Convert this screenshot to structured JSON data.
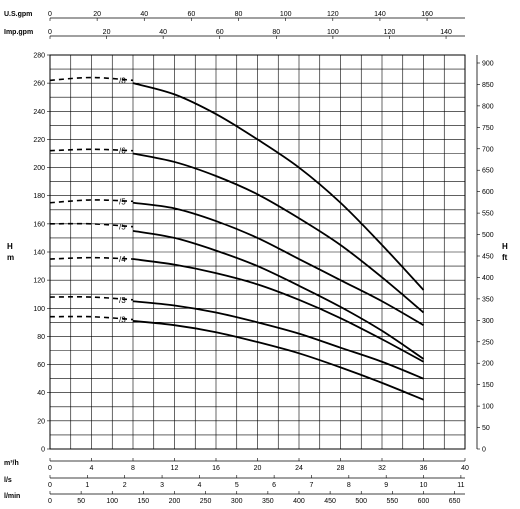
{
  "chart_data": {
    "type": "line",
    "left_axis": {
      "label_line1": "H",
      "label_line2": "m",
      "ylim": [
        0,
        280
      ],
      "ticks": [
        0,
        20,
        40,
        60,
        80,
        100,
        120,
        140,
        160,
        180,
        200,
        220,
        240,
        260,
        280
      ]
    },
    "right_axis": {
      "label_line1": "H",
      "label_line2": "ft",
      "ticks": [
        0,
        50,
        100,
        150,
        200,
        250,
        300,
        350,
        400,
        450,
        500,
        550,
        600,
        650,
        700,
        750,
        800,
        850,
        900
      ]
    },
    "top_axes": [
      {
        "label": "U.S.gpm",
        "ticks": [
          0,
          20,
          40,
          60,
          80,
          100,
          120,
          140,
          160
        ],
        "max": 176.1
      },
      {
        "label": "Imp.gpm",
        "ticks": [
          0,
          20,
          40,
          60,
          80,
          100,
          120,
          140
        ],
        "max": 146.7
      }
    ],
    "bottom_axes": [
      {
        "label": "m³/h",
        "ticks": [
          0,
          4,
          8,
          12,
          16,
          20,
          24,
          28,
          32,
          36,
          40
        ],
        "max": 40
      },
      {
        "label": "l/s",
        "ticks": [
          0,
          1,
          2,
          3,
          4,
          5,
          6,
          7,
          8,
          9,
          10,
          11
        ],
        "max": 11.11
      },
      {
        "label": "l/min",
        "ticks": [
          0,
          50,
          100,
          150,
          200,
          250,
          300,
          350,
          400,
          450,
          500,
          550,
          600,
          650
        ],
        "max": 666.7
      }
    ],
    "xlim": [
      0,
      40
    ],
    "series": [
      {
        "name": "/8",
        "x": [
          8,
          12,
          16,
          20,
          24,
          28,
          32,
          36
        ],
        "y": [
          260,
          252,
          238,
          220,
          200,
          175,
          145,
          113
        ],
        "dashed_x": [
          0,
          4,
          8
        ],
        "dashed_y": [
          262,
          264,
          262
        ]
      },
      {
        "name": "/6",
        "x": [
          8,
          12,
          16,
          20,
          24,
          28,
          32,
          36
        ],
        "y": [
          210,
          204,
          194,
          181,
          164,
          145,
          122,
          97
        ],
        "dashed_x": [
          0,
          4,
          8
        ],
        "dashed_y": [
          212,
          213,
          212
        ]
      },
      {
        "name": "/5",
        "x": [
          8,
          12,
          16,
          20,
          24,
          28,
          32,
          36
        ],
        "y": [
          175,
          171,
          162,
          150,
          135,
          120,
          105,
          88
        ],
        "dashed_x": [
          0,
          4,
          8
        ],
        "dashed_y": [
          175,
          177,
          176
        ]
      },
      {
        "name": "/5",
        "x": [
          8,
          12,
          16,
          20,
          24,
          28,
          32,
          36
        ],
        "y": [
          155,
          150,
          141,
          130,
          116,
          101,
          84,
          64
        ],
        "dashed_x": [
          0,
          4,
          8
        ],
        "dashed_y": [
          160,
          160,
          158
        ]
      },
      {
        "name": "/4",
        "x": [
          8,
          12,
          16,
          20,
          24,
          28,
          32,
          36
        ],
        "y": [
          135,
          131,
          125,
          117,
          106,
          93,
          78,
          62
        ],
        "dashed_x": [
          0,
          4,
          8
        ],
        "dashed_y": [
          135,
          136,
          135
        ]
      },
      {
        "name": "/3",
        "x": [
          8,
          12,
          16,
          20,
          24,
          28,
          32,
          36
        ],
        "y": [
          105,
          102,
          97,
          90,
          82,
          72,
          62,
          50
        ],
        "dashed_x": [
          0,
          4,
          8
        ],
        "dashed_y": [
          108,
          108,
          106
        ]
      },
      {
        "name": "/3",
        "x": [
          8,
          12,
          16,
          20,
          24,
          28,
          32,
          36
        ],
        "y": [
          91,
          88,
          83,
          76,
          68,
          58,
          47,
          35
        ],
        "dashed_x": [
          0,
          4,
          8
        ],
        "dashed_y": [
          94,
          94,
          92
        ]
      }
    ],
    "grid": true
  }
}
